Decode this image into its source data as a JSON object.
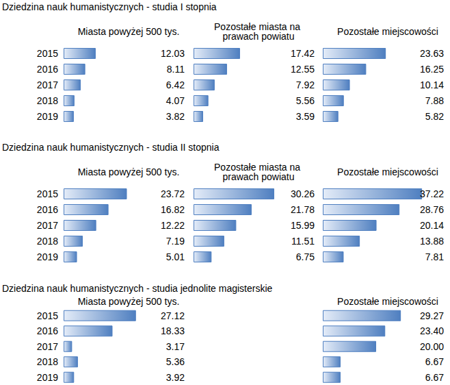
{
  "chart_data": [
    {
      "type": "bar",
      "title": "Dziedzina nauk humanistycznych - studia I stopnia",
      "orientation": "horizontal",
      "data_labels": true,
      "tick_labels": "y",
      "grid": false,
      "color": "#4f7fc0",
      "xlim": [
        0,
        40
      ],
      "categories": [
        "2015",
        "2016",
        "2017",
        "2018",
        "2019"
      ],
      "series": [
        {
          "name": "Miasta powyżej 500 tys.",
          "values": [
            12.03,
            8.11,
            6.42,
            4.07,
            3.82
          ]
        },
        {
          "name": "Pozostałe miasta na prawach powiatu",
          "values": [
            17.42,
            12.55,
            7.92,
            5.56,
            3.59
          ]
        },
        {
          "name": "Pozostałe miejscowości",
          "values": [
            23.63,
            16.25,
            10.14,
            7.88,
            5.82
          ]
        }
      ]
    },
    {
      "type": "bar",
      "title": "Dziedzina nauk humanistycznych - studia II stopnia",
      "orientation": "horizontal",
      "data_labels": true,
      "tick_labels": "y",
      "grid": false,
      "color": "#4f7fc0",
      "xlim": [
        0,
        40
      ],
      "categories": [
        "2015",
        "2016",
        "2017",
        "2018",
        "2019"
      ],
      "series": [
        {
          "name": "Miasta powyżej 500 tys.",
          "values": [
            23.72,
            16.82,
            12.22,
            7.19,
            5.01
          ]
        },
        {
          "name": "Pozostałe miasta na prawach powiatu",
          "values": [
            30.26,
            21.78,
            15.99,
            11.51,
            6.75
          ]
        },
        {
          "name": "Pozostałe miejscowości",
          "values": [
            37.22,
            28.76,
            20.14,
            13.88,
            7.81
          ]
        }
      ]
    },
    {
      "type": "bar",
      "title": "Dziedzina nauk humanistycznych - studia jednolite magisterskie",
      "orientation": "horizontal",
      "data_labels": true,
      "tick_labels": "y",
      "grid": false,
      "color": "#4f7fc0",
      "xlim": [
        0,
        40
      ],
      "categories": [
        "2015",
        "2016",
        "2017",
        "2018",
        "2019"
      ],
      "series": [
        {
          "name": "Miasta powyżej 500 tys.",
          "values": [
            27.12,
            18.33,
            3.17,
            5.36,
            3.92
          ]
        },
        {
          "name": "Pozostałe miejscowości",
          "values": [
            29.27,
            23.4,
            20,
            6.67,
            6.67
          ],
          "value_labels": [
            "29.27",
            "23.40",
            "20.00",
            "6.67",
            "6.67"
          ]
        }
      ]
    }
  ]
}
